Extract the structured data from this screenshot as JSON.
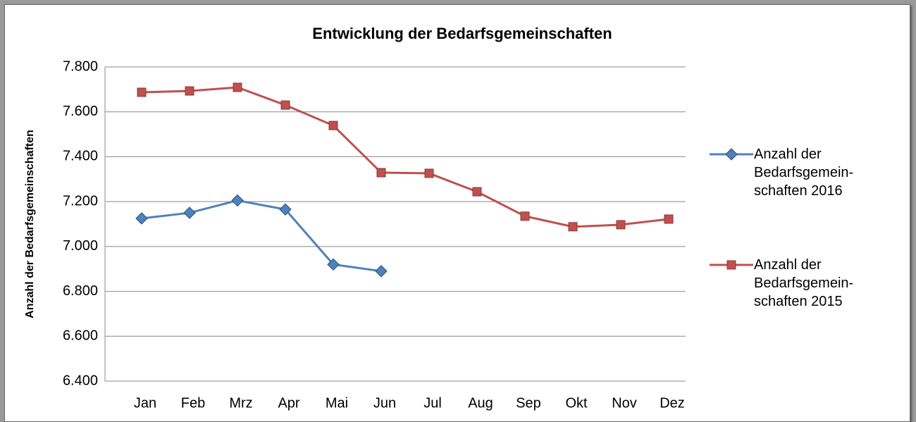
{
  "chart_data": {
    "type": "line",
    "title": "Entwicklung der Bedarfsgemeinschaften",
    "y_label": "Anzahl der Bedarfsgemeinschaften",
    "categories": [
      "Jan",
      "Feb",
      "Mrz",
      "Apr",
      "Mai",
      "Jun",
      "Jul",
      "Aug",
      "Sep",
      "Okt",
      "Nov",
      "Dez"
    ],
    "series": [
      {
        "name": "Anzahl der Bedarfsgemein-schaften 2016",
        "color": "#4f81bd",
        "marker": "diamond",
        "values": [
          7125,
          7150,
          7205,
          7165,
          6920,
          6890,
          null,
          null,
          null,
          null,
          null,
          null
        ]
      },
      {
        "name": "Anzahl der Bedarfsgemein-schaften 2015",
        "color": "#c0504d",
        "marker": "square",
        "values": [
          7687,
          7693,
          7709,
          7630,
          7539,
          7329,
          7326,
          7244,
          7135,
          7088,
          7097,
          7122
        ]
      }
    ],
    "ylim": [
      6400,
      7800
    ],
    "yticks": [
      {
        "value": 6400,
        "label": "6.400"
      },
      {
        "value": 6600,
        "label": "6.600"
      },
      {
        "value": 6800,
        "label": "6.800"
      },
      {
        "value": 7000,
        "label": "7.000"
      },
      {
        "value": 7200,
        "label": "7.200"
      },
      {
        "value": 7400,
        "label": "7.400"
      },
      {
        "value": 7600,
        "label": "7.600"
      },
      {
        "value": 7800,
        "label": "7.800"
      }
    ],
    "grid": true,
    "legend": "right"
  }
}
